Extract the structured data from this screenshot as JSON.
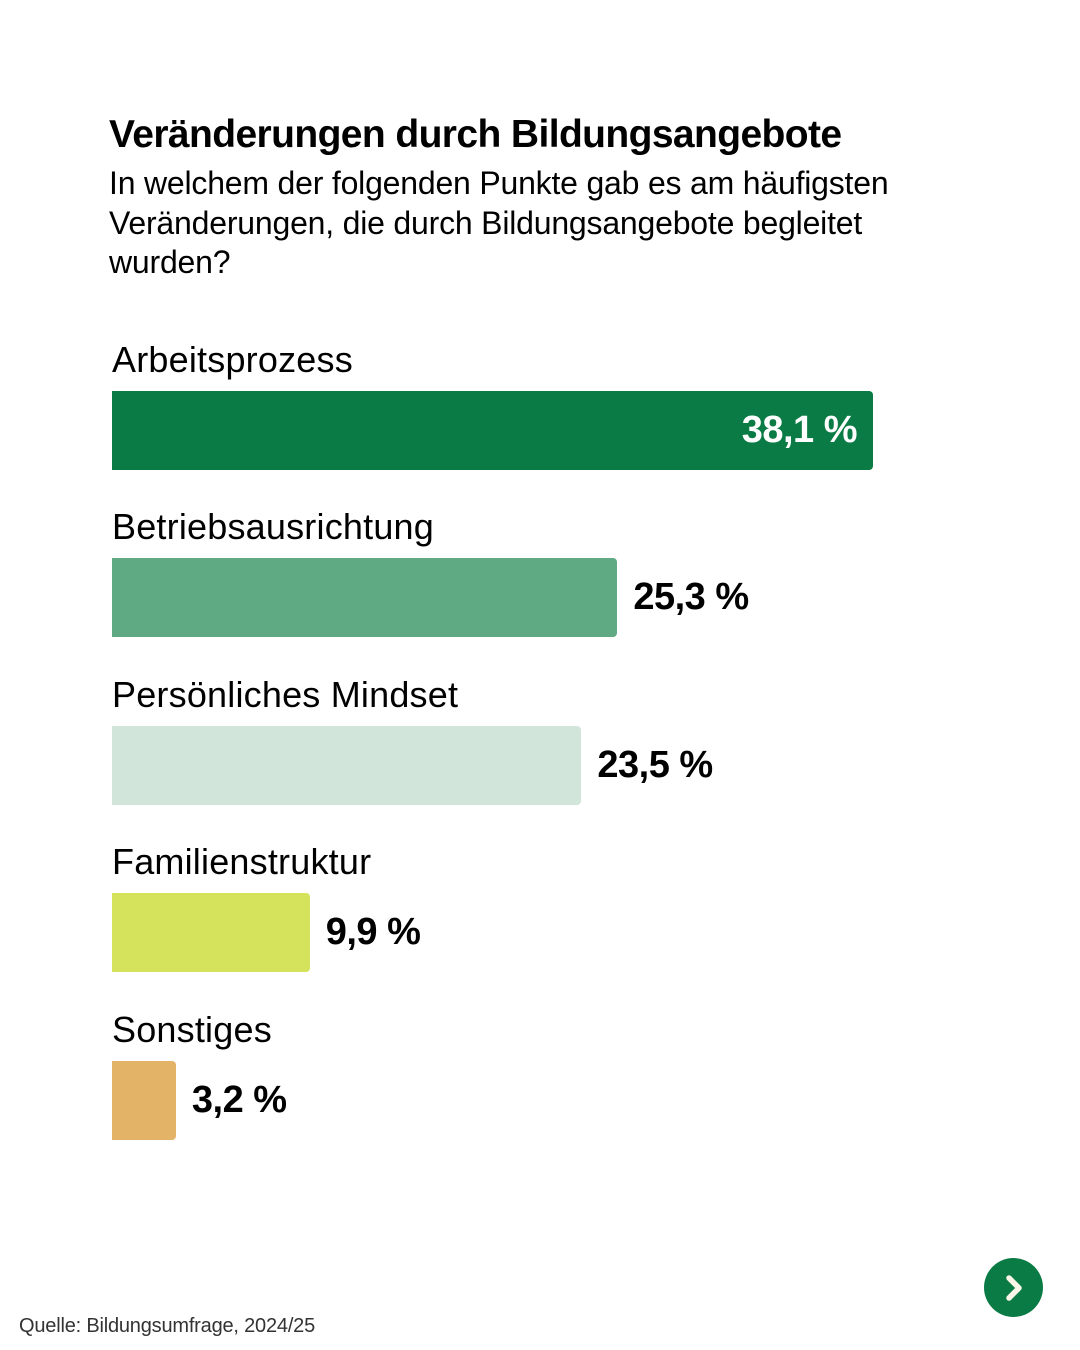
{
  "header": {
    "title": "Veränderungen durch Bildungsangebote",
    "subtitle": "In welchem der folgenden Punkte gab es am häufigsten Veränderungen, die durch Bildungsangebote begleitet wurden?"
  },
  "footer": {
    "source": "Quelle: Bildungsumfrage, 2024/25",
    "next_icon": "chevron-right-icon",
    "next_color": "#0a7b45",
    "next_glyph_color": "#fbf7e6"
  },
  "chart_data": {
    "type": "bar",
    "orientation": "horizontal",
    "title": "Veränderungen durch Bildungsangebote",
    "subtitle": "In welchem der folgenden Punkte gab es am häufigsten Veränderungen, die durch Bildungsangebote begleitet wurden?",
    "categories": [
      "Arbeitsprozess",
      "Betriebsausrichtung",
      "Persönliches Mindset",
      "Familienstruktur",
      "Sonstiges"
    ],
    "values": [
      38.1,
      25.3,
      23.5,
      9.9,
      3.2
    ],
    "value_labels": [
      "38,1 %",
      "25,3 %",
      "23,5 %",
      "9,9 %",
      "3,2 %"
    ],
    "colors": [
      "#0a7b45",
      "#5fa983",
      "#d1e5da",
      "#d5e25c",
      "#e3b468"
    ],
    "unit": "%",
    "xlabel": "",
    "ylabel": "",
    "xlim": [
      0,
      40
    ],
    "grid": false,
    "legend": "none",
    "source": "Quelle: Bildungsumfrage, 2024/25"
  }
}
